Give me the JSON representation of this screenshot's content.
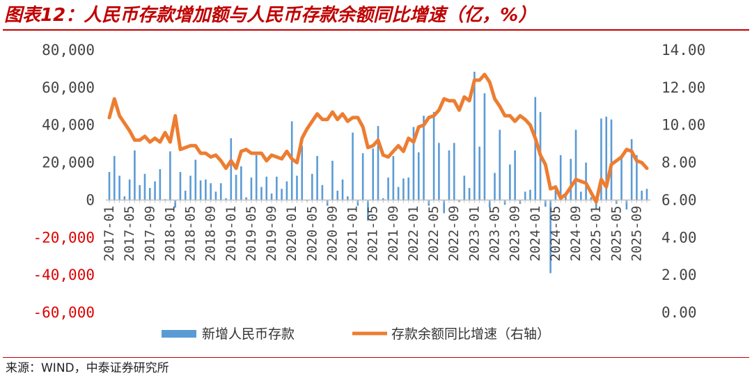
{
  "title": "图表12：人民币存款增加额与人民币存款余额同比增速（亿，%）",
  "source": "来源：WIND，中泰证券研究所",
  "colors": {
    "bar": "#5b9bd5",
    "line": "#ed7d31",
    "title": "#c00000",
    "negative_tick": "#e00000"
  },
  "chart_data": {
    "type": "bar+line",
    "y_left": {
      "min": -60000,
      "max": 80000,
      "ticks": [
        80000,
        60000,
        40000,
        20000,
        0,
        -20000,
        -40000,
        -60000
      ],
      "tick_labels": [
        "80,000",
        "60,000",
        "40,000",
        "20,000",
        "0",
        "-20,000",
        "-40,000",
        "-60,000"
      ]
    },
    "y_right": {
      "min": 0,
      "max": 14,
      "ticks": [
        14,
        12,
        10,
        8,
        6,
        4,
        2,
        0
      ],
      "tick_labels": [
        "14.00",
        "12.00",
        "10.00",
        "8.00",
        "6.00",
        "4.00",
        "2.00",
        "0.00"
      ]
    },
    "x_tick_labels": [
      "2017-01",
      "2017-05",
      "2017-09",
      "2018-01",
      "2018-05",
      "2018-09",
      "2019-01",
      "2019-05",
      "2019-09",
      "2020-01",
      "2020-05",
      "2020-09",
      "2021-01",
      "2021-05",
      "2021-09",
      "2022-01",
      "2022-05",
      "2022-09",
      "2023-01",
      "2023-05",
      "2023-09",
      "2024-01",
      "2024-05",
      "2024-09",
      "2025-01",
      "2025-05",
      "2025-09"
    ],
    "periods": [
      "2017-01",
      "2017-02",
      "2017-03",
      "2017-04",
      "2017-05",
      "2017-06",
      "2017-07",
      "2017-08",
      "2017-09",
      "2017-10",
      "2017-11",
      "2017-12",
      "2018-01",
      "2018-02",
      "2018-03",
      "2018-04",
      "2018-05",
      "2018-06",
      "2018-07",
      "2018-08",
      "2018-09",
      "2018-10",
      "2018-11",
      "2018-12",
      "2019-01",
      "2019-02",
      "2019-03",
      "2019-04",
      "2019-05",
      "2019-06",
      "2019-07",
      "2019-08",
      "2019-09",
      "2019-10",
      "2019-11",
      "2019-12",
      "2020-01",
      "2020-02",
      "2020-03",
      "2020-04",
      "2020-05",
      "2020-06",
      "2020-07",
      "2020-08",
      "2020-09",
      "2020-10",
      "2020-11",
      "2020-12",
      "2021-01",
      "2021-02",
      "2021-03",
      "2021-04",
      "2021-05",
      "2021-06",
      "2021-07",
      "2021-08",
      "2021-09",
      "2021-10",
      "2021-11",
      "2021-12",
      "2022-01",
      "2022-02",
      "2022-03",
      "2022-04",
      "2022-05",
      "2022-06",
      "2022-07",
      "2022-08",
      "2022-09",
      "2022-10",
      "2022-11",
      "2022-12",
      "2023-01",
      "2023-02",
      "2023-03",
      "2023-04",
      "2023-05",
      "2023-06",
      "2023-07",
      "2023-08",
      "2023-09",
      "2023-10",
      "2023-11",
      "2023-12",
      "2024-01",
      "2024-02",
      "2024-03",
      "2024-04",
      "2024-05",
      "2024-06",
      "2024-07",
      "2024-08",
      "2024-09",
      "2024-10",
      "2024-11",
      "2024-12",
      "2025-01",
      "2025-02",
      "2025-03",
      "2025-04",
      "2025-05",
      "2025-06",
      "2025-07",
      "2025-08",
      "2025-09",
      "2025-10",
      "2025-11"
    ],
    "series": [
      {
        "name": "新增人民币存款",
        "type": "bar",
        "axis": "left",
        "values": [
          15000,
          23500,
          13000,
          2000,
          11000,
          26500,
          8000,
          14000,
          6500,
          10000,
          16500,
          500,
          26000,
          -4000,
          15000,
          5000,
          13000,
          21500,
          10500,
          11000,
          9000,
          4500,
          9000,
          1000,
          33000,
          13500,
          18000,
          1500,
          12000,
          24000,
          7000,
          12500,
          3500,
          12500,
          6000,
          10000,
          42000,
          13000,
          29000,
          -500,
          14000,
          23500,
          8000,
          -3000,
          21000,
          5000,
          11000,
          2000,
          36000,
          -3000,
          25000,
          -11000,
          27500,
          39500,
          1000,
          12000,
          23500,
          7000,
          11500,
          12000,
          39000,
          25500,
          45000,
          -3000,
          47000,
          30500,
          -7000,
          26500,
          30500,
          -1000,
          13000,
          6500,
          68500,
          28500,
          57000,
          -4000,
          14500,
          37500,
          -2500,
          19000,
          26500,
          -2000,
          4500,
          5500,
          55000,
          47000,
          -3500,
          -39000,
          6000,
          24000,
          3000,
          22000,
          37500,
          4500,
          20000,
          1500,
          -5000,
          43500,
          44500,
          43000,
          -2000,
          24000,
          -5000,
          32500,
          24000,
          5000,
          6000
        ]
      },
      {
        "name": "存款余额同比增速（右轴）",
        "type": "line",
        "axis": "right",
        "values": [
          10.4,
          11.4,
          10.5,
          10.1,
          9.7,
          9.2,
          9.2,
          9.4,
          9.1,
          9.3,
          9.1,
          9.6,
          9.1,
          10.5,
          8.7,
          8.8,
          8.9,
          8.9,
          8.5,
          8.5,
          8.3,
          8.4,
          8.1,
          7.7,
          8.1,
          7.7,
          8.6,
          8.7,
          8.5,
          8.5,
          8.5,
          8.1,
          8.4,
          8.3,
          8.2,
          8.6,
          8.2,
          8.0,
          9.3,
          9.8,
          10.2,
          10.6,
          10.3,
          10.3,
          10.7,
          10.3,
          10.6,
          10.2,
          10.4,
          10.4,
          9.9,
          8.8,
          8.9,
          9.2,
          8.4,
          8.3,
          8.6,
          8.9,
          8.6,
          9.3,
          9.1,
          9.9,
          10.0,
          10.4,
          10.5,
          10.8,
          11.4,
          11.3,
          11.3,
          10.8,
          11.5,
          11.3,
          12.4,
          12.4,
          12.7,
          12.3,
          11.4,
          11.0,
          10.5,
          10.5,
          10.2,
          10.5,
          10.3,
          10.0,
          9.3,
          8.4,
          7.9,
          6.6,
          6.7,
          6.1,
          6.3,
          6.7,
          7.1,
          7.0,
          6.9,
          6.4,
          5.9,
          7.1,
          6.7,
          7.9,
          8.1,
          8.3,
          8.7,
          8.6,
          8.1,
          8.0,
          7.7
        ]
      }
    ],
    "legend": {
      "position": "bottom-center"
    }
  }
}
